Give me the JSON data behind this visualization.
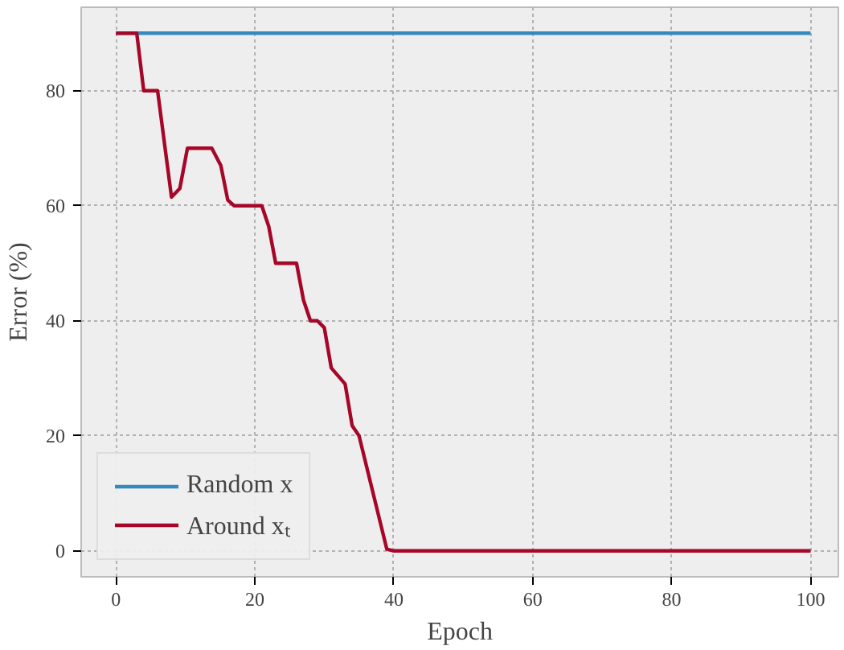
{
  "chart_data": {
    "type": "line",
    "xlabel": "Epoch",
    "ylabel": "Error (%)",
    "xlim": [
      -5,
      104
    ],
    "ylim": [
      -4.5,
      94.5
    ],
    "xticks": [
      0,
      20,
      40,
      60,
      80,
      100
    ],
    "yticks": [
      0,
      20,
      40,
      60,
      80
    ],
    "grid": true,
    "legend": "bottom left",
    "line_style": "solid",
    "marker": "none",
    "series": [
      {
        "name": "Random x",
        "color": "#348abd",
        "x": [
          0,
          100
        ],
        "values": [
          90,
          90
        ]
      },
      {
        "name": "Around xₜ",
        "color": "#a60628",
        "x": [
          0,
          3,
          4,
          6,
          8,
          9.2,
          10.3,
          13.8,
          15.1,
          16.1,
          17,
          21,
          22,
          23,
          26,
          27,
          28,
          29,
          30,
          31,
          33,
          34,
          35,
          39,
          40,
          100
        ],
        "values": [
          90,
          90,
          80,
          80,
          61.5,
          63,
          70,
          70,
          67,
          61,
          60,
          60,
          56.4,
          50,
          50,
          43.6,
          40,
          40,
          38.8,
          31.8,
          29,
          21.8,
          20,
          0.3,
          0,
          0
        ]
      }
    ]
  }
}
